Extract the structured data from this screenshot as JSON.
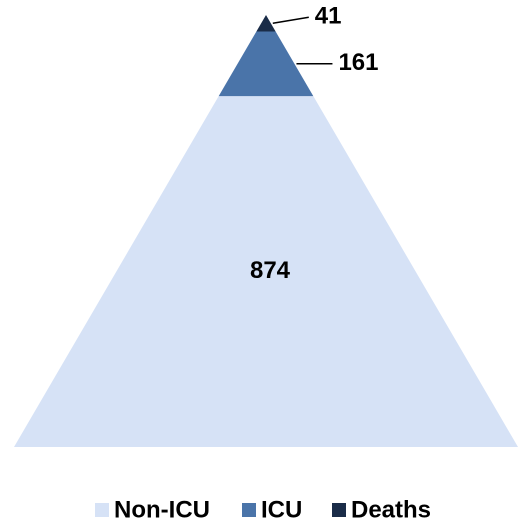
{
  "chart_data": {
    "type": "pyramid",
    "categories": [
      "Non-ICU",
      "ICU",
      "Deaths"
    ],
    "values": [
      874,
      161,
      41
    ],
    "colors": [
      "#d6e2f6",
      "#4a74a9",
      "#1a2c48"
    ]
  }
}
